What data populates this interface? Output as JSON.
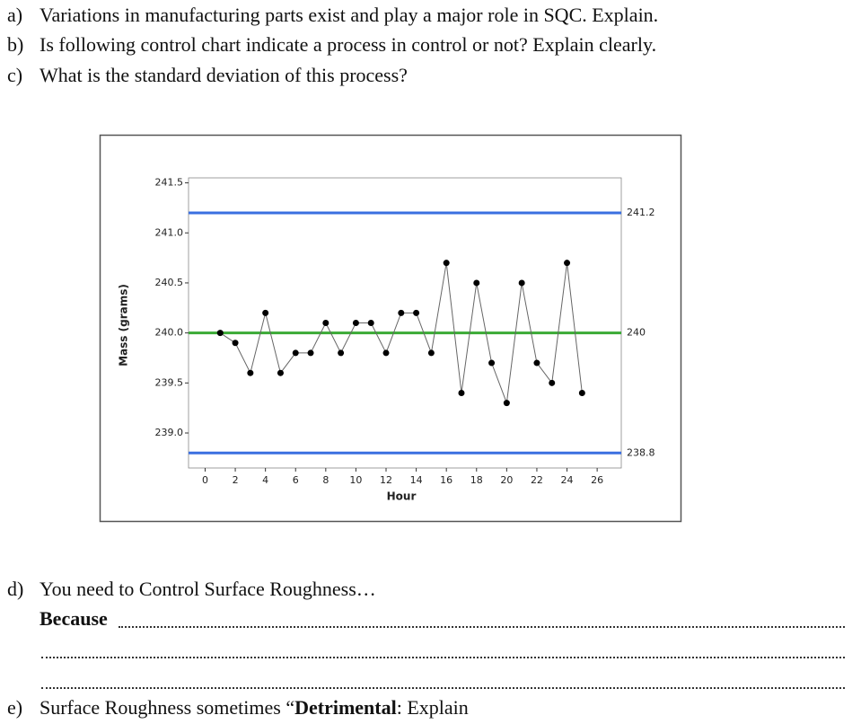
{
  "questions": [
    {
      "label": "a)",
      "text": "Variations in manufacturing parts exist and play a major role in SQC. Explain."
    },
    {
      "label": "b)",
      "text": "Is following control chart indicate a process in control or not? Explain clearly."
    },
    {
      "label": "c)",
      "text": "What is the standard deviation of this process?"
    },
    {
      "label": "d)",
      "text": "You need to Control Surface Roughness…",
      "answer_lead": "Because"
    },
    {
      "label": "e)",
      "text_before": "Surface Roughness sometimes “",
      "bold": "Detrimental",
      "text_after": ": Explain"
    }
  ],
  "chart_data": {
    "type": "line",
    "x_label": "Hour",
    "y_label": "Mass (grams)",
    "x": [
      1,
      2,
      3,
      4,
      5,
      6,
      7,
      8,
      9,
      10,
      11,
      12,
      13,
      14,
      15,
      16,
      17,
      18,
      19,
      20,
      21,
      22,
      23,
      24,
      25
    ],
    "series": [
      {
        "color": "#000000",
        "values": [
          240.0,
          239.9,
          239.6,
          240.2,
          239.6,
          239.8,
          239.8,
          240.1,
          239.8,
          240.1,
          240.1,
          239.8,
          240.2,
          240.2,
          239.8,
          240.7,
          239.4,
          240.5,
          239.7,
          239.3,
          240.5,
          239.7,
          239.5,
          240.7,
          239.4
        ]
      }
    ],
    "control_lines": [
      {
        "value": 241.2,
        "color": "#3a6fe0"
      },
      {
        "value": 240,
        "color": "#3aaa35"
      },
      {
        "value": 238.8,
        "color": "#3a6fe0"
      }
    ],
    "xlim": [
      -1.1,
      27.6
    ],
    "ylim": [
      238.65,
      241.55
    ],
    "xticks": [
      0,
      2,
      4,
      6,
      8,
      10,
      12,
      14,
      16,
      18,
      20,
      22,
      24,
      26
    ],
    "yticks": [
      {
        "value": 239,
        "label": "239.0"
      },
      239.5,
      {
        "value": 240,
        "label": "240.0"
      },
      240.5,
      {
        "value": 241,
        "label": "241.0"
      },
      241.5
    ]
  }
}
